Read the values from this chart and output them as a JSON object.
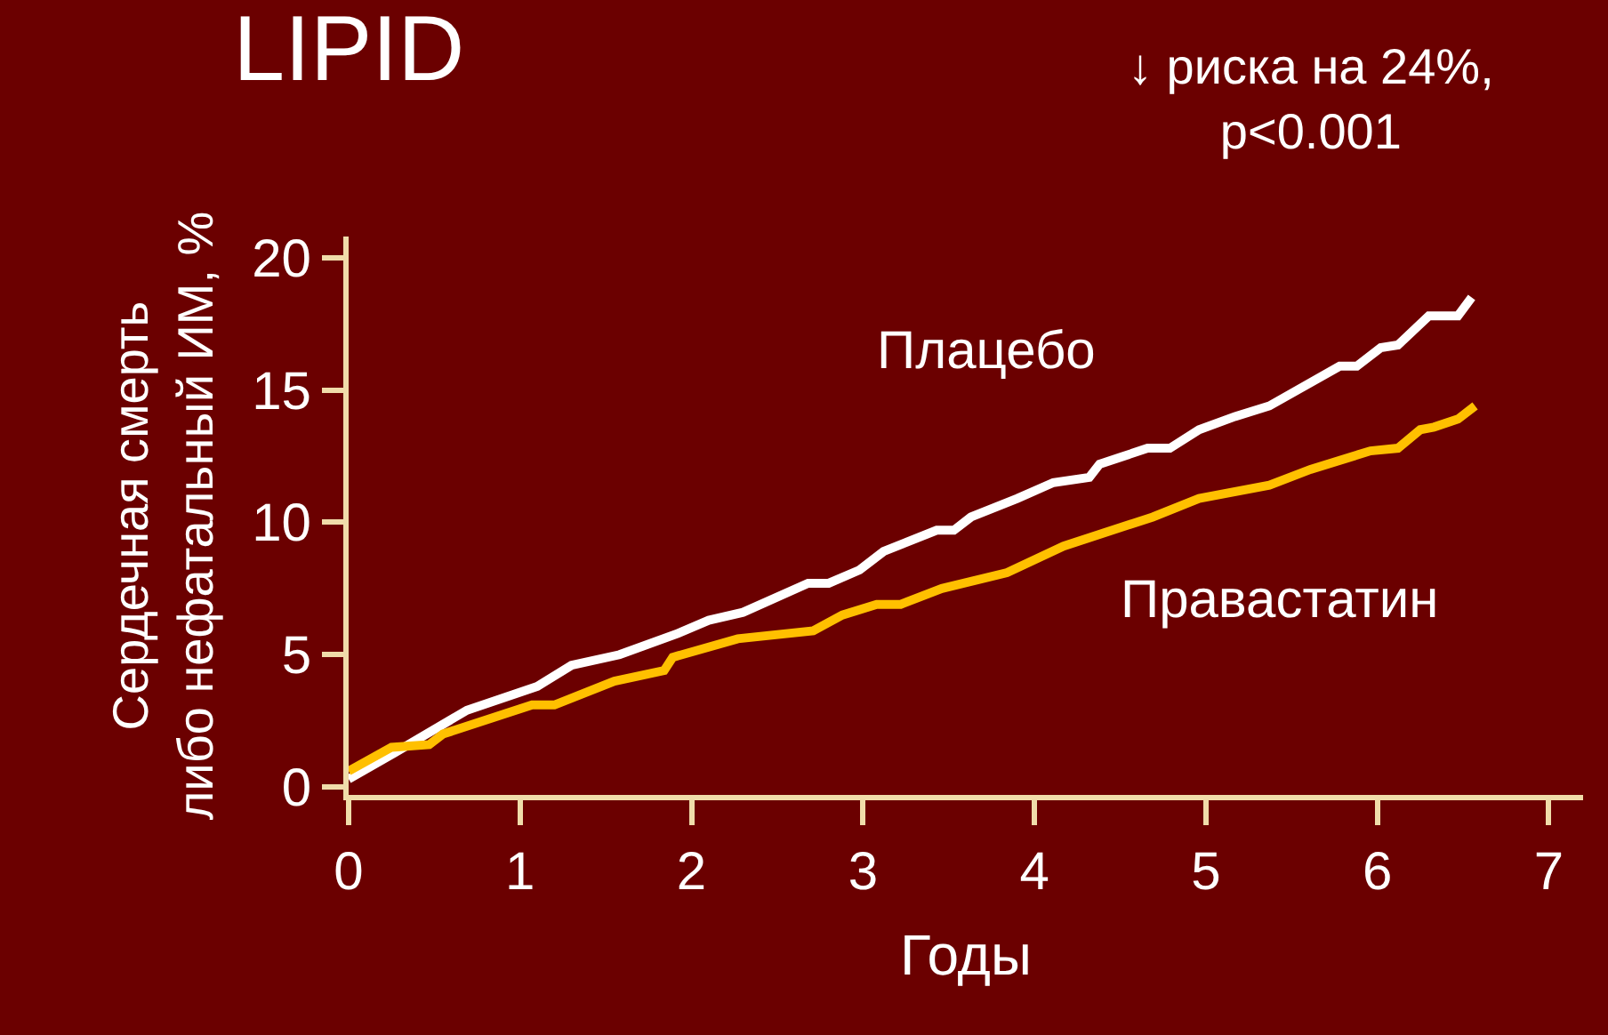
{
  "chart_data": {
    "type": "line",
    "title": "LIPID",
    "xlabel": "Годы",
    "ylabel": "Сердечная смерть\nлибо нефатальный ИМ, %",
    "annotations": [
      "↓ риска на 24%,\np<0.001"
    ],
    "xlim": [
      0,
      7.2
    ],
    "ylim": [
      -0.3,
      20.8
    ],
    "xticks": [
      0,
      1,
      2,
      3,
      4,
      5,
      6,
      7
    ],
    "yticks": [
      0,
      5,
      10,
      15,
      20
    ],
    "grid": false,
    "legend": false,
    "marker": "none",
    "line_style": "solid",
    "series": [
      {
        "name": "Плацебо",
        "color": "#ffffff",
        "x": [
          0,
          0.27,
          0.69,
          1.1,
          1.3,
          1.58,
          1.92,
          2.1,
          2.3,
          2.68,
          2.8,
          2.98,
          3.12,
          3.43,
          3.53,
          3.63,
          3.9,
          4.11,
          4.32,
          4.38,
          4.66,
          4.79,
          4.96,
          5.17,
          5.37,
          5.78,
          5.88,
          6.02,
          6.12,
          6.3,
          6.47,
          6.55
        ],
        "values": [
          0.3,
          1.3,
          2.9,
          3.8,
          4.6,
          5.0,
          5.8,
          6.3,
          6.6,
          7.7,
          7.7,
          8.2,
          8.9,
          9.7,
          9.7,
          10.2,
          10.9,
          11.5,
          11.7,
          12.2,
          12.8,
          12.8,
          13.5,
          14.0,
          14.4,
          15.9,
          15.9,
          16.6,
          16.7,
          17.8,
          17.8,
          18.5
        ]
      },
      {
        "name": "Правастатин",
        "color": "#ffc000",
        "x": [
          0,
          0.25,
          0.47,
          0.55,
          1.07,
          1.2,
          1.55,
          1.84,
          1.89,
          2.27,
          2.71,
          2.88,
          3.08,
          3.22,
          3.46,
          3.84,
          4.17,
          4.69,
          4.96,
          5.37,
          5.61,
          5.96,
          6.12,
          6.25,
          6.33,
          6.47,
          6.57
        ],
        "values": [
          0.6,
          1.5,
          1.6,
          2.0,
          3.1,
          3.1,
          4.0,
          4.4,
          4.9,
          5.6,
          5.9,
          6.5,
          6.9,
          6.9,
          7.5,
          8.1,
          9.1,
          10.2,
          10.9,
          11.4,
          12.0,
          12.7,
          12.8,
          13.5,
          13.6,
          13.9,
          14.4
        ]
      }
    ]
  }
}
